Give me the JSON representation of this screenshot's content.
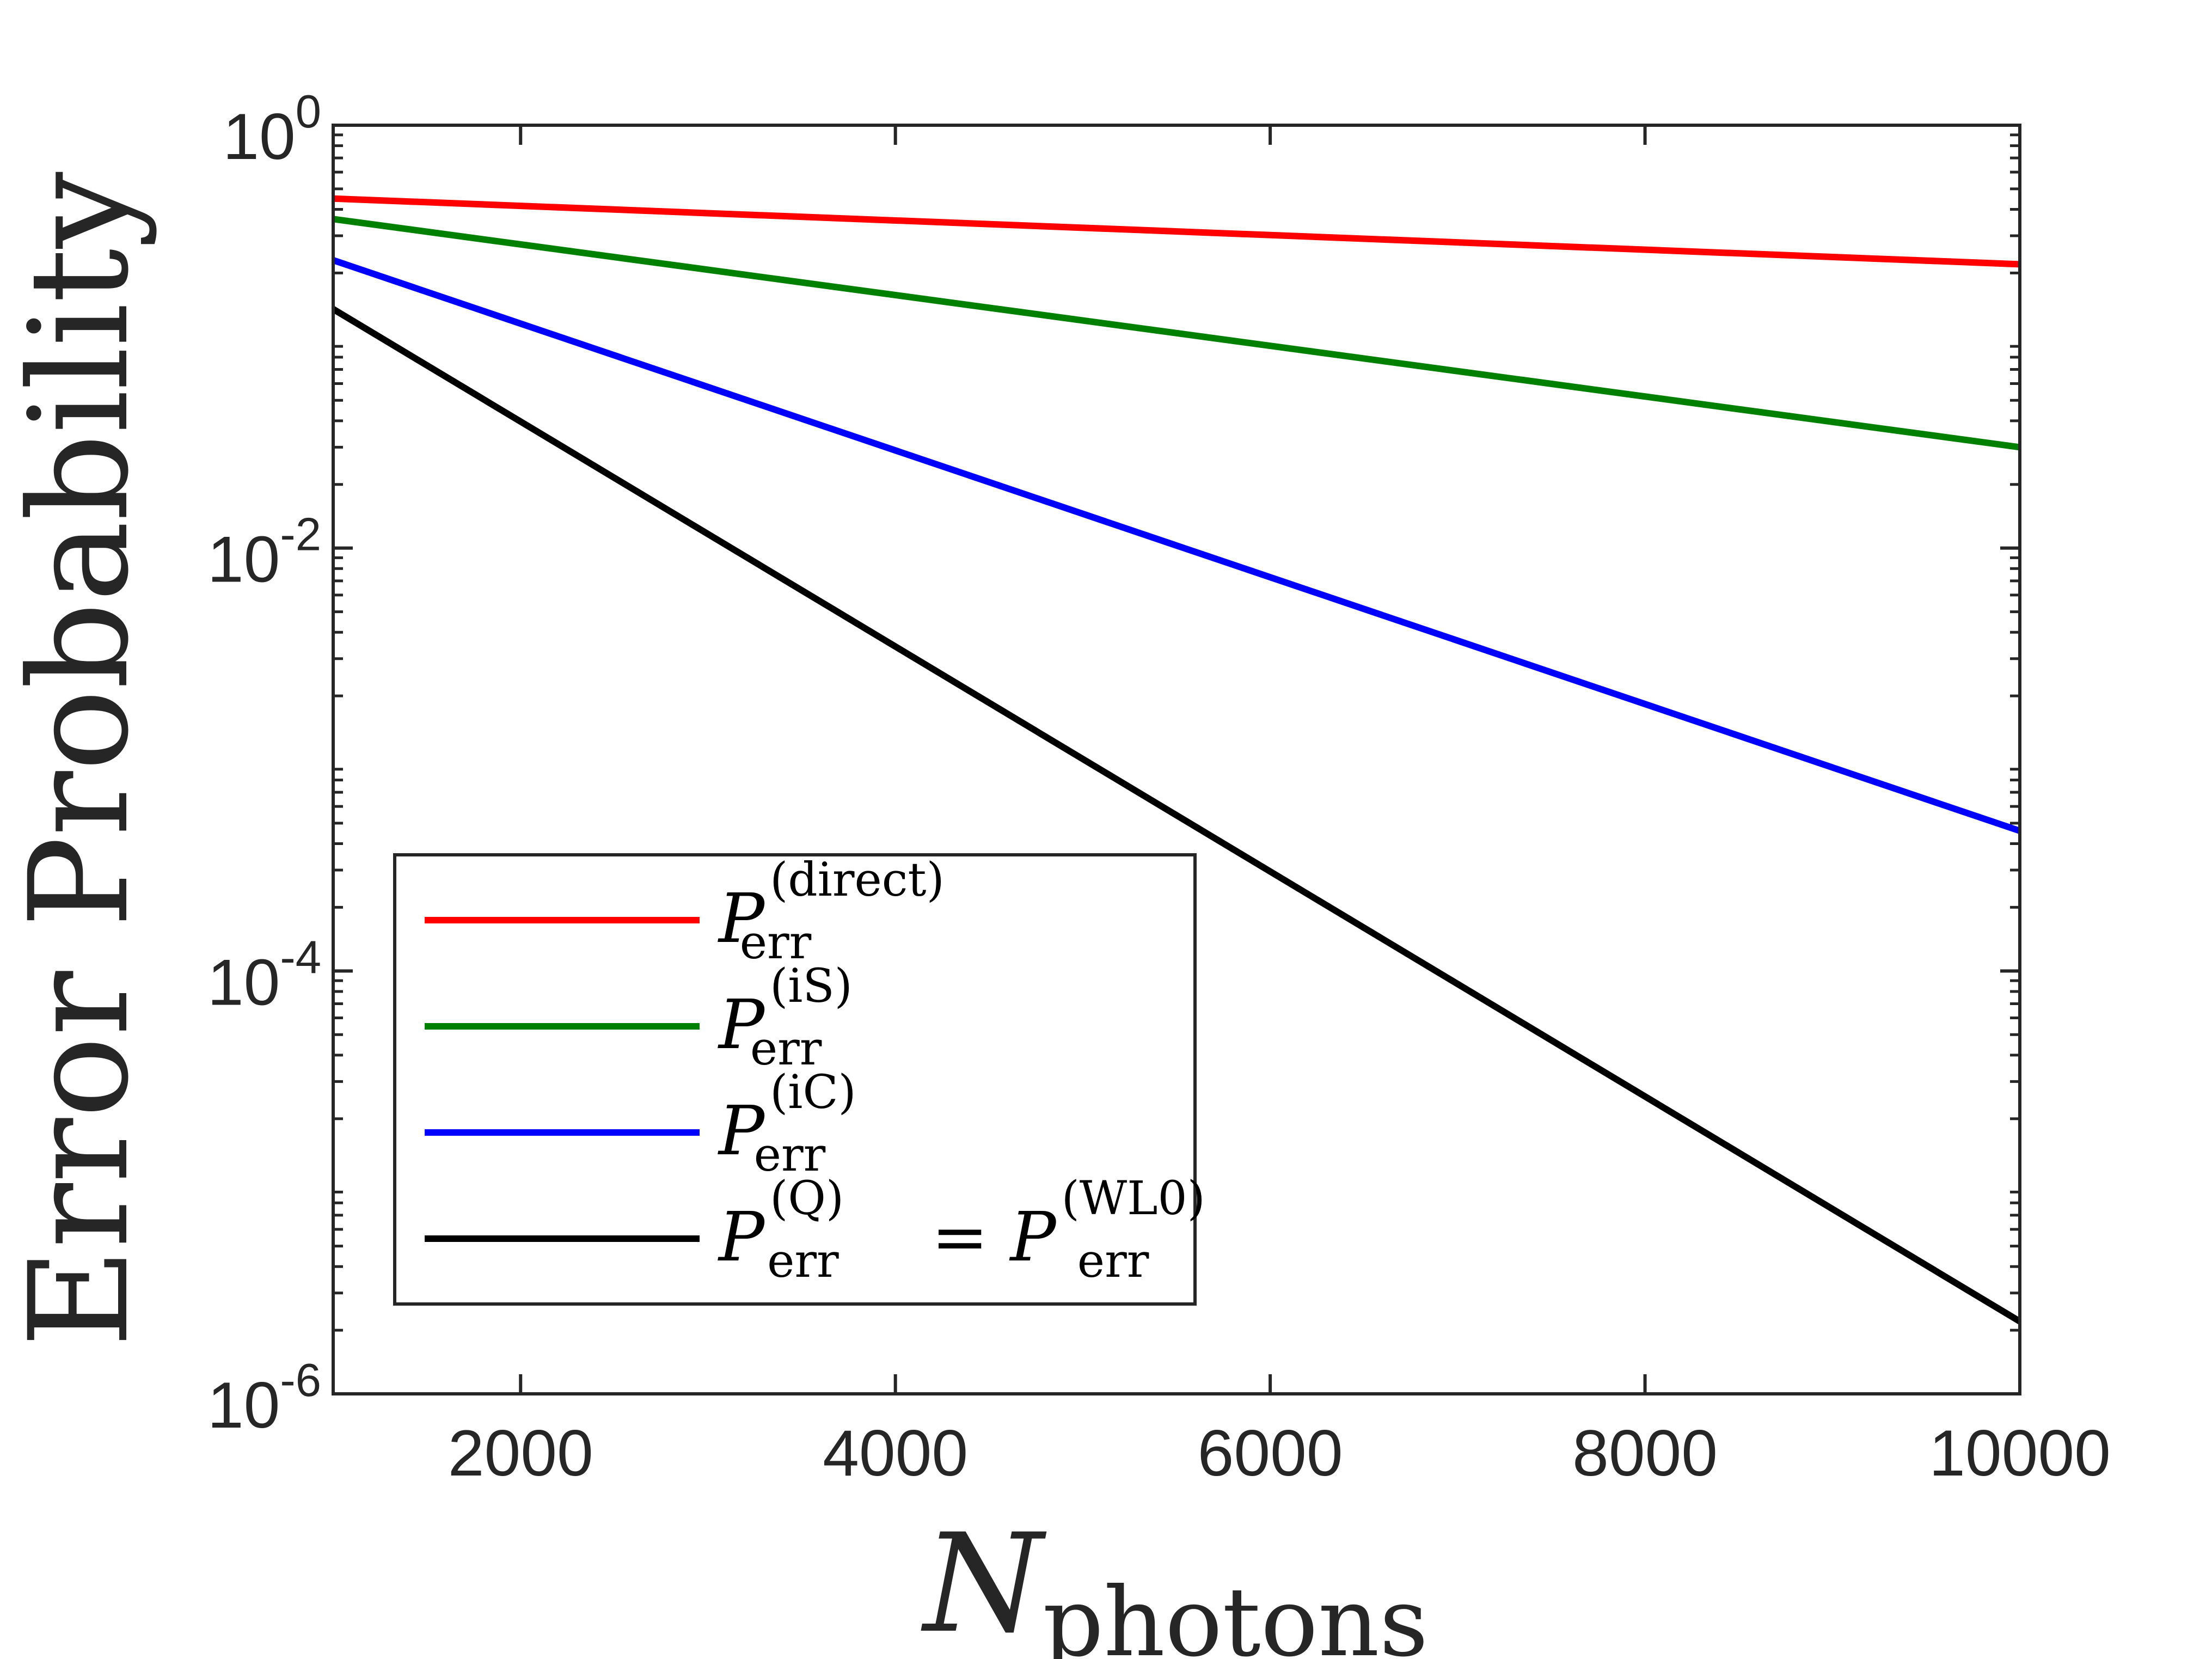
{
  "chart_data": {
    "type": "line",
    "title": "",
    "xlabel": {
      "main": "N",
      "subscript": "photons"
    },
    "ylabel": "Error Probability",
    "xlim": [
      1000,
      10000
    ],
    "ylim": [
      1e-06,
      1
    ],
    "yscale": "log",
    "grid": false,
    "x_ticks": [
      {
        "value": 2000,
        "label": "2000"
      },
      {
        "value": 4000,
        "label": "4000"
      },
      {
        "value": 6000,
        "label": "6000"
      },
      {
        "value": 8000,
        "label": "8000"
      },
      {
        "value": 10000,
        "label": "10000"
      }
    ],
    "y_ticks": [
      {
        "value": 1,
        "base": "10",
        "exp": "0"
      },
      {
        "value": 0.01,
        "base": "10",
        "exp": "-2"
      },
      {
        "value": 0.0001,
        "base": "10",
        "exp": "-4"
      },
      {
        "value": 1e-06,
        "base": "10",
        "exp": "-6"
      }
    ],
    "legend_position": "bottom-left",
    "series": [
      {
        "name": "direct",
        "label_main": "P",
        "label_sub": "err",
        "label_sup": "(direct)",
        "label_extra": null,
        "color": "#ff0000",
        "x": [
          1000,
          10000
        ],
        "y": [
          0.45,
          0.22
        ]
      },
      {
        "name": "iS",
        "label_main": "P",
        "label_sub": "err",
        "label_sup": "(iS)",
        "label_extra": null,
        "color": "#008000",
        "x": [
          1000,
          10000
        ],
        "y": [
          0.36,
          0.03
        ]
      },
      {
        "name": "iC",
        "label_main": "P",
        "label_sub": "err",
        "label_sup": "(iC)",
        "label_extra": null,
        "color": "#0000ff",
        "x": [
          1000,
          10000
        ],
        "y": [
          0.23,
          0.00046
        ]
      },
      {
        "name": "Q",
        "label_main": "P",
        "label_sub": "err",
        "label_sup": "(Q)",
        "label_extra": {
          "sep": "=",
          "main": "P",
          "sub": "err",
          "sup": "(WL0)"
        },
        "color": "#000000",
        "x": [
          1000,
          10000
        ],
        "y": [
          0.135,
          2.2e-06
        ]
      }
    ]
  }
}
